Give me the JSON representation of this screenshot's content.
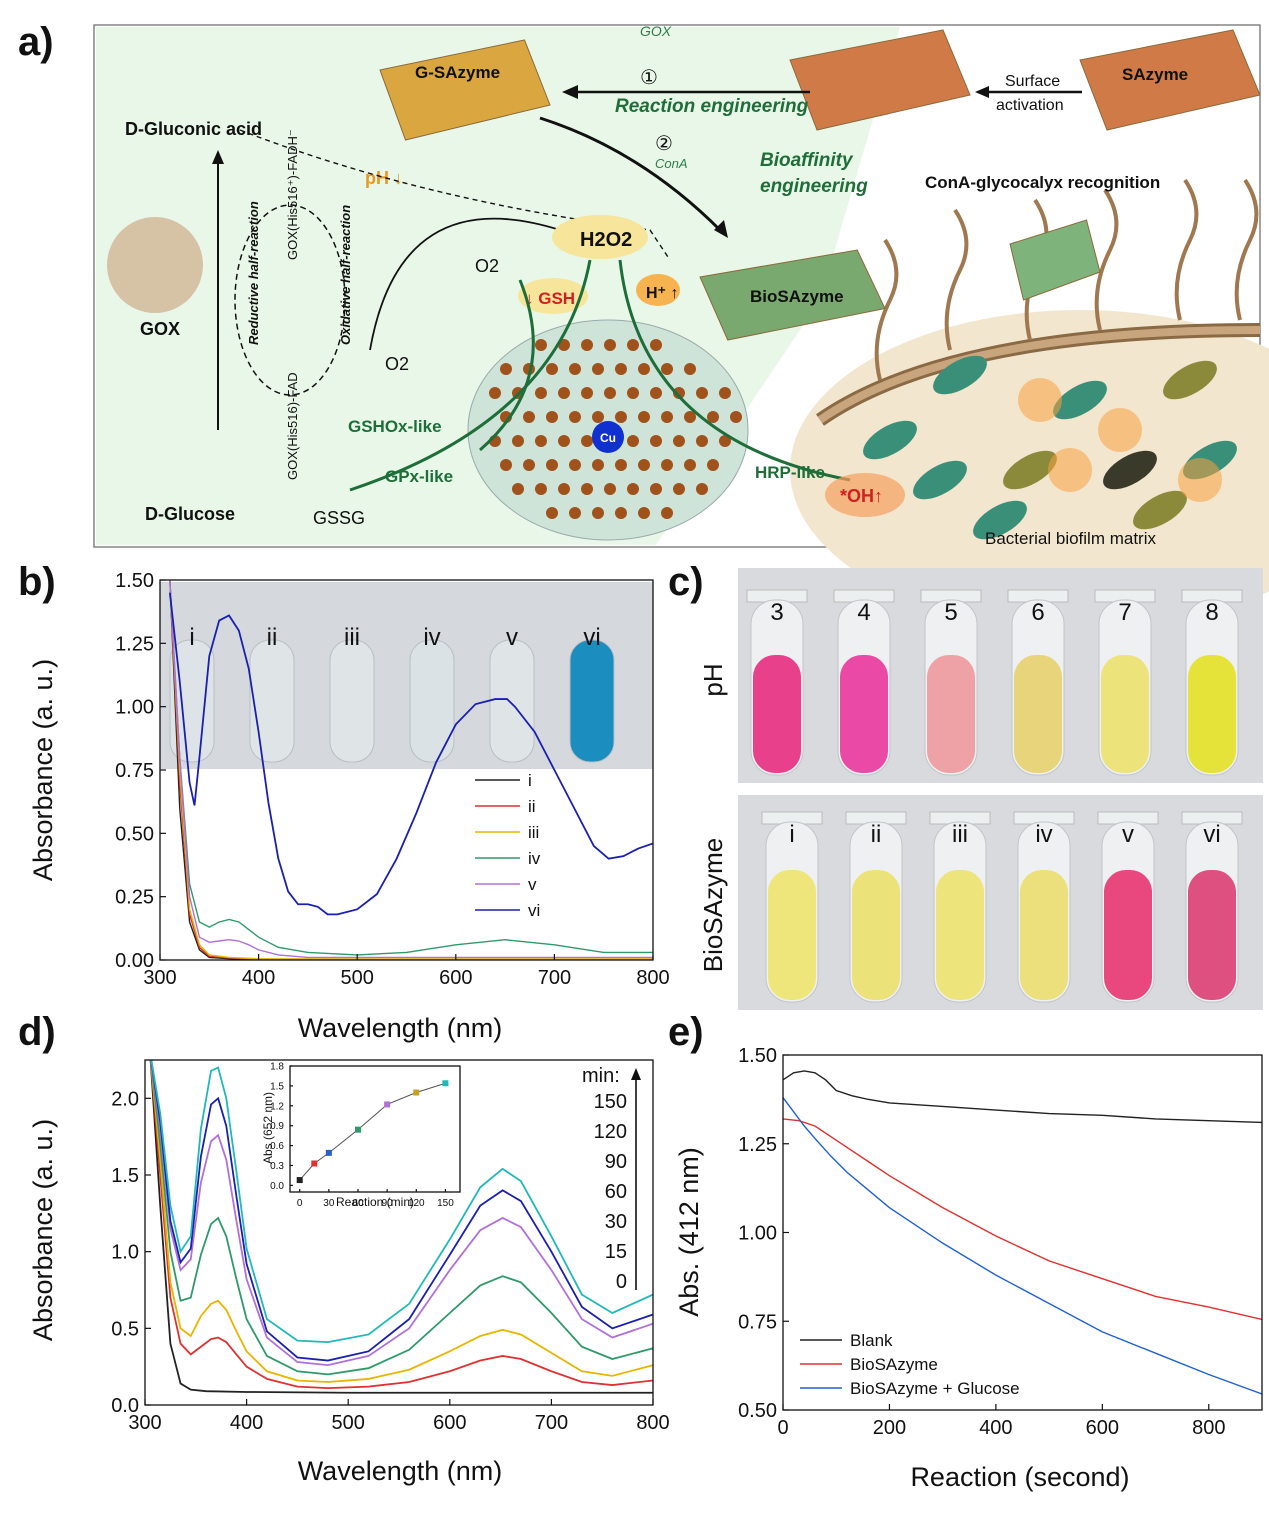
{
  "panels": {
    "a": "a)",
    "b": "b)",
    "c": "c)",
    "d": "d)",
    "e": "e)"
  },
  "panel_a": {
    "gluconic_label": "D-Gluconic acid",
    "glucose_label": "D-Glucose",
    "gox_label": "GOX",
    "reductive": "Reductive half-reaction",
    "oxidative": "Oxidative half-reaction",
    "gox_fadh": "GOX(His516⁺)-FADH⁻",
    "gox_fad": "GOX(His516)-FAD",
    "o2_a": "O2",
    "o2_b": "O2",
    "ph_down": "pH ↓",
    "h2o2": "H2O2",
    "h_plus": "H⁺ ↑",
    "gsh": "↓ GSH",
    "gshox": "GSHOx-like",
    "gpx": "GPx-like",
    "gssg": "GSSG",
    "hrp": "HRP-like",
    "oh": "*OH↑",
    "cu": "Cu",
    "g_sazyme": "G-SAzyme",
    "sazyme": "SAzyme",
    "surface_activation": "Surface activation",
    "step1": "①",
    "step1_gox": "GOX",
    "reaction_eng": "Reaction engineering",
    "step2": "②",
    "step2_cona": "ConA",
    "bioaffinity": "Bioaffinity engineering",
    "biosazyme": "BioSAzyme",
    "cona_recog": "ConA-glycocalyx recognition",
    "biofilm": "Bacterial biofilm matrix"
  },
  "panel_c": {
    "ph_axis": "pH",
    "bio_axis": "BioSAzyme",
    "ph_labels": [
      "3",
      "4",
      "5",
      "6",
      "7",
      "8"
    ],
    "ph_colors": [
      "#e8408a",
      "#ea4aa5",
      "#efa2a6",
      "#e8d47a",
      "#ece37a",
      "#e5e23a"
    ],
    "bio_labels": [
      "i",
      "ii",
      "iii",
      "iv",
      "v",
      "vi"
    ],
    "bio_colors": [
      "#eee67a",
      "#ece27a",
      "#ede47c",
      "#ece07c",
      "#e8487e",
      "#dd5080"
    ]
  },
  "panel_b_photo": {
    "labels": [
      "i",
      "ii",
      "iii",
      "iv",
      "v",
      "vi"
    ],
    "colors": [
      "#dde3e6",
      "#dfe4e6",
      "#dfe4e6",
      "#dbe2e6",
      "#dfe4e6",
      "#1b8dbf"
    ]
  },
  "chart_data": [
    {
      "id": "b",
      "type": "line",
      "xlabel": "Wavelength (nm)",
      "ylabel": "Absorbance (a. u.)",
      "xlim": [
        300,
        800
      ],
      "ylim": [
        0,
        1.5
      ],
      "xticks": [
        300,
        400,
        500,
        600,
        700,
        800
      ],
      "yticks": [
        0.0,
        0.25,
        0.5,
        0.75,
        1.0,
        1.25,
        1.5
      ],
      "legend_position": "lower-right",
      "series": [
        {
          "name": "i",
          "color": "#222222",
          "x": [
            310,
            320,
            330,
            340,
            350,
            370,
            400,
            500,
            600,
            700,
            800
          ],
          "y": [
            1.5,
            0.6,
            0.15,
            0.04,
            0.01,
            0.005,
            0.0,
            0.0,
            0.0,
            0.0,
            0.0
          ]
        },
        {
          "name": "ii",
          "color": "#e03030",
          "x": [
            310,
            320,
            330,
            340,
            350,
            370,
            400,
            500,
            600,
            700,
            800
          ],
          "y": [
            1.5,
            0.7,
            0.18,
            0.05,
            0.015,
            0.008,
            0.003,
            0.002,
            0.002,
            0.002,
            0.002
          ]
        },
        {
          "name": "iii",
          "color": "#e8b500",
          "x": [
            310,
            320,
            330,
            340,
            350,
            370,
            400,
            500,
            600,
            700,
            800
          ],
          "y": [
            1.5,
            0.75,
            0.2,
            0.06,
            0.02,
            0.01,
            0.005,
            0.004,
            0.004,
            0.004,
            0.004
          ]
        },
        {
          "name": "iv",
          "color": "#2e9a6a",
          "x": [
            310,
            320,
            330,
            340,
            350,
            360,
            370,
            380,
            390,
            400,
            420,
            450,
            500,
            550,
            600,
            650,
            700,
            750,
            800
          ],
          "y": [
            1.5,
            0.8,
            0.3,
            0.15,
            0.13,
            0.15,
            0.16,
            0.15,
            0.12,
            0.09,
            0.05,
            0.03,
            0.02,
            0.03,
            0.06,
            0.08,
            0.06,
            0.03,
            0.03
          ]
        },
        {
          "name": "v",
          "color": "#b070d8",
          "x": [
            310,
            320,
            330,
            340,
            350,
            360,
            370,
            380,
            390,
            400,
            420,
            450,
            500,
            600,
            700,
            800
          ],
          "y": [
            1.5,
            0.8,
            0.25,
            0.09,
            0.07,
            0.075,
            0.08,
            0.075,
            0.06,
            0.04,
            0.02,
            0.01,
            0.01,
            0.01,
            0.01,
            0.01
          ]
        },
        {
          "name": "vi",
          "color": "#1a1fb0",
          "x": [
            310,
            320,
            330,
            335,
            340,
            350,
            360,
            370,
            380,
            390,
            400,
            410,
            420,
            430,
            440,
            450,
            460,
            470,
            480,
            500,
            520,
            540,
            560,
            580,
            600,
            620,
            640,
            652,
            660,
            680,
            700,
            720,
            740,
            755,
            770,
            785,
            800
          ],
          "y": [
            1.45,
            1.1,
            0.7,
            0.61,
            0.8,
            1.2,
            1.34,
            1.36,
            1.3,
            1.15,
            0.9,
            0.62,
            0.4,
            0.27,
            0.22,
            0.22,
            0.21,
            0.18,
            0.18,
            0.2,
            0.26,
            0.4,
            0.58,
            0.78,
            0.93,
            1.01,
            1.03,
            1.03,
            1.0,
            0.9,
            0.75,
            0.6,
            0.45,
            0.4,
            0.41,
            0.44,
            0.46
          ]
        }
      ]
    },
    {
      "id": "d",
      "type": "line",
      "xlabel": "Wavelength (nm)",
      "ylabel": "Absorbance (a. u.)",
      "xlim": [
        300,
        800
      ],
      "ylim": [
        0,
        2.25
      ],
      "xticks": [
        300,
        400,
        500,
        600,
        700,
        800
      ],
      "yticks": [
        0.0,
        0.5,
        1.0,
        1.5,
        2.0
      ],
      "legend_title": "min:",
      "legend_labels": [
        "150",
        "120",
        "90",
        "60",
        "30",
        "15",
        "0"
      ],
      "series": [
        {
          "name": "0",
          "color": "#222222",
          "x": [
            305,
            315,
            325,
            335,
            345,
            360,
            400,
            500,
            600,
            700,
            800
          ],
          "y": [
            2.3,
            1.3,
            0.4,
            0.14,
            0.1,
            0.09,
            0.085,
            0.08,
            0.08,
            0.08,
            0.08
          ]
        },
        {
          "name": "15",
          "color": "#e03030",
          "x": [
            305,
            315,
            325,
            335,
            345,
            355,
            365,
            372,
            380,
            390,
            400,
            420,
            450,
            480,
            520,
            560,
            600,
            630,
            652,
            670,
            700,
            730,
            760,
            800
          ],
          "y": [
            2.3,
            1.5,
            0.7,
            0.4,
            0.33,
            0.38,
            0.43,
            0.44,
            0.41,
            0.33,
            0.25,
            0.17,
            0.12,
            0.11,
            0.12,
            0.15,
            0.22,
            0.29,
            0.32,
            0.3,
            0.22,
            0.15,
            0.13,
            0.16
          ]
        },
        {
          "name": "30",
          "color": "#e8b500",
          "x": [
            305,
            315,
            325,
            335,
            345,
            355,
            365,
            372,
            380,
            390,
            400,
            420,
            450,
            480,
            520,
            560,
            600,
            630,
            652,
            670,
            700,
            730,
            760,
            800
          ],
          "y": [
            2.3,
            1.6,
            0.8,
            0.5,
            0.45,
            0.58,
            0.66,
            0.68,
            0.62,
            0.48,
            0.35,
            0.22,
            0.16,
            0.15,
            0.17,
            0.23,
            0.35,
            0.45,
            0.49,
            0.46,
            0.34,
            0.22,
            0.19,
            0.26
          ]
        },
        {
          "name": "60",
          "color": "#2e9a6a",
          "x": [
            305,
            315,
            325,
            335,
            345,
            355,
            365,
            372,
            380,
            390,
            400,
            420,
            450,
            480,
            520,
            560,
            600,
            630,
            652,
            670,
            700,
            730,
            760,
            800
          ],
          "y": [
            2.3,
            1.7,
            1.0,
            0.68,
            0.7,
            0.98,
            1.18,
            1.22,
            1.1,
            0.82,
            0.56,
            0.32,
            0.22,
            0.2,
            0.24,
            0.36,
            0.6,
            0.78,
            0.84,
            0.8,
            0.6,
            0.38,
            0.3,
            0.37
          ]
        },
        {
          "name": "90",
          "color": "#b070d8",
          "x": [
            305,
            315,
            325,
            335,
            345,
            355,
            365,
            372,
            380,
            390,
            400,
            420,
            450,
            480,
            520,
            560,
            600,
            630,
            652,
            670,
            700,
            730,
            760,
            800
          ],
          "y": [
            2.3,
            1.8,
            1.15,
            0.88,
            0.95,
            1.45,
            1.72,
            1.76,
            1.6,
            1.2,
            0.82,
            0.44,
            0.28,
            0.26,
            0.32,
            0.5,
            0.88,
            1.14,
            1.22,
            1.16,
            0.88,
            0.56,
            0.44,
            0.53
          ]
        },
        {
          "name": "120",
          "color": "#1a1fb0",
          "x": [
            305,
            315,
            325,
            335,
            345,
            355,
            365,
            372,
            380,
            390,
            400,
            420,
            450,
            480,
            520,
            560,
            600,
            630,
            652,
            670,
            700,
            730,
            760,
            800
          ],
          "y": [
            2.3,
            1.85,
            1.2,
            0.93,
            1.02,
            1.62,
            1.96,
            2.0,
            1.82,
            1.36,
            0.92,
            0.48,
            0.31,
            0.29,
            0.35,
            0.56,
            0.98,
            1.3,
            1.4,
            1.33,
            1.0,
            0.64,
            0.5,
            0.59
          ]
        },
        {
          "name": "150",
          "color": "#20b8b8",
          "x": [
            305,
            315,
            325,
            335,
            345,
            355,
            365,
            372,
            380,
            390,
            400,
            420,
            450,
            480,
            520,
            560,
            600,
            630,
            652,
            670,
            700,
            730,
            760,
            800
          ],
          "y": [
            2.3,
            1.9,
            1.3,
            1.0,
            1.1,
            1.8,
            2.18,
            2.2,
            2.0,
            1.52,
            1.02,
            0.56,
            0.42,
            0.41,
            0.46,
            0.66,
            1.08,
            1.42,
            1.54,
            1.46,
            1.1,
            0.72,
            0.6,
            0.72
          ]
        }
      ]
    },
    {
      "id": "d_inset",
      "type": "line",
      "xlabel": "Reaction (min)",
      "ylabel": "Abs (652 nm)",
      "xlim": [
        -10,
        165
      ],
      "ylim": [
        -0.1,
        1.8
      ],
      "xticks": [
        0,
        30,
        60,
        90,
        120,
        150
      ],
      "yticks": [
        0.0,
        0.3,
        0.6,
        0.9,
        1.2,
        1.5,
        1.8
      ],
      "x": [
        0,
        15,
        30,
        60,
        90,
        120,
        150
      ],
      "y": [
        0.08,
        0.33,
        0.49,
        0.84,
        1.22,
        1.4,
        1.54
      ],
      "colors": [
        "#222222",
        "#e03030",
        "#2860c8",
        "#2e9a6a",
        "#b070d8",
        "#c8a020",
        "#20b8b8"
      ]
    },
    {
      "id": "e",
      "type": "line",
      "xlabel": "Reaction (second)",
      "ylabel": "Abs. (412 nm)",
      "xlim": [
        0,
        900
      ],
      "ylim": [
        0.5,
        1.5
      ],
      "xticks": [
        0,
        200,
        400,
        600,
        800
      ],
      "yticks": [
        0.5,
        0.75,
        1.0,
        1.25,
        1.5
      ],
      "legend_position": "lower-left",
      "series": [
        {
          "name": "Blank",
          "color": "#222222",
          "x": [
            0,
            20,
            40,
            60,
            80,
            100,
            130,
            160,
            200,
            300,
            400,
            500,
            600,
            700,
            800,
            900
          ],
          "y": [
            1.43,
            1.45,
            1.455,
            1.45,
            1.43,
            1.4,
            1.385,
            1.375,
            1.365,
            1.355,
            1.345,
            1.335,
            1.33,
            1.32,
            1.315,
            1.31
          ]
        },
        {
          "name": "BioSAzyme",
          "color": "#e03030",
          "x": [
            0,
            30,
            60,
            90,
            120,
            160,
            200,
            300,
            400,
            500,
            600,
            700,
            800,
            900
          ],
          "y": [
            1.32,
            1.315,
            1.3,
            1.27,
            1.24,
            1.2,
            1.16,
            1.07,
            0.99,
            0.92,
            0.87,
            0.82,
            0.79,
            0.755
          ]
        },
        {
          "name": "BioSAzyme + Glucose",
          "color": "#2060d0",
          "x": [
            0,
            20,
            40,
            60,
            90,
            120,
            160,
            200,
            250,
            300,
            400,
            500,
            600,
            700,
            800,
            900
          ],
          "y": [
            1.38,
            1.34,
            1.3,
            1.265,
            1.215,
            1.17,
            1.12,
            1.07,
            1.02,
            0.97,
            0.88,
            0.8,
            0.72,
            0.66,
            0.6,
            0.545
          ]
        }
      ]
    }
  ]
}
